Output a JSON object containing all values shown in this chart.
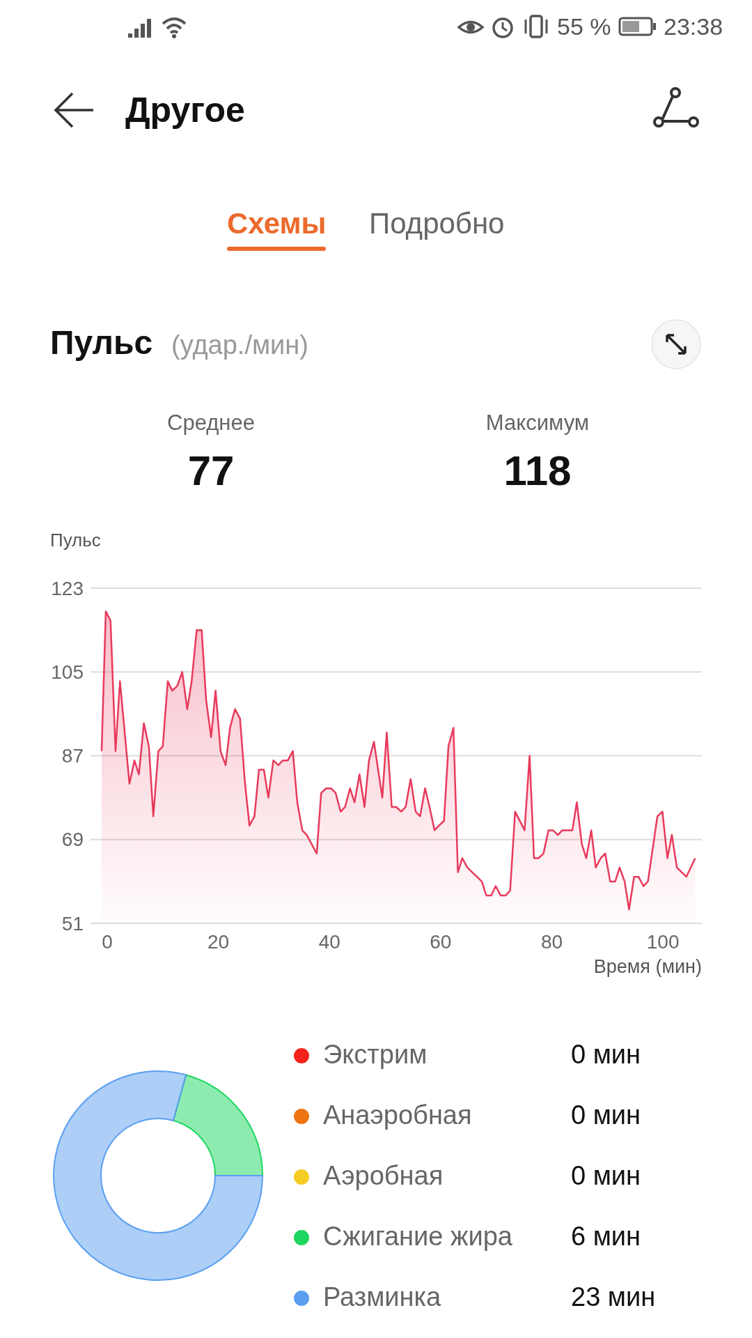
{
  "chart_data": [
    {
      "type": "area",
      "title": "Пульс",
      "subtitle": "(удар./мин)",
      "ylabel": "Пульс",
      "xlabel": "Время (мин)",
      "annotations": [
        "Другое",
        "Схемы",
        "Подробно",
        "Среднее",
        "77",
        "Максимум",
        "118",
        "55 %",
        "23:38"
      ],
      "x": [
        -1.0,
        -0.25,
        0.6,
        1.5,
        2.3,
        4.0,
        4.9,
        5.7,
        6.6,
        7.5,
        8.3,
        9.2,
        10.0,
        10.9,
        11.7,
        12.6,
        13.5,
        14.4,
        15.2,
        16.1,
        17.0,
        17.8,
        18.7,
        19.5,
        20.4,
        21.3,
        22.1,
        23.0,
        23.9,
        24.8,
        25.6,
        26.5,
        27.3,
        28.2,
        29.0,
        29.9,
        30.8,
        31.6,
        32.5,
        33.4,
        34.2,
        35.1,
        35.9,
        37.7,
        38.5,
        39.4,
        40.3,
        41.1,
        42.0,
        42.8,
        43.7,
        44.5,
        45.4,
        46.3,
        47.1,
        48.0,
        49.5,
        50.3,
        51.2,
        52.0,
        52.9,
        53.7,
        54.6,
        55.5,
        56.3,
        57.2,
        58.0,
        58.9,
        59.7,
        60.6,
        61.4,
        62.3,
        63.1,
        63.9,
        64.8,
        67.4,
        68.2,
        69.1,
        69.9,
        70.8,
        71.7,
        72.5,
        73.4,
        75.1,
        76.0,
        76.8,
        77.6,
        78.5,
        79.4,
        80.2,
        81.1,
        81.9,
        83.7,
        84.5,
        85.4,
        86.2,
        87.1,
        87.9,
        88.8,
        89.6,
        90.5,
        91.4,
        92.2,
        93.1,
        93.9,
        94.8,
        95.6,
        96.5,
        97.3,
        99.0,
        99.9,
        100.8,
        101.6,
        102.5,
        104.2,
        105.8
      ],
      "series": [
        {
          "color": "#e83a5c",
          "values": [
            88,
            118,
            116,
            88,
            103,
            81,
            86,
            83,
            94,
            89,
            74,
            88,
            89,
            103,
            101,
            102,
            105,
            97,
            103,
            114,
            114,
            99,
            91,
            101,
            88,
            85,
            93,
            97,
            95,
            81,
            72,
            74,
            84,
            84,
            78,
            86,
            85,
            86,
            86,
            88,
            77,
            71,
            70,
            66,
            79,
            80,
            80,
            79,
            75,
            76,
            80,
            77,
            83,
            76,
            86,
            90,
            78,
            92,
            76,
            76,
            75,
            76,
            82,
            75,
            74,
            80,
            76,
            71,
            72,
            73,
            89,
            93,
            62,
            65,
            63,
            60,
            57,
            57,
            59,
            57,
            57,
            58,
            75,
            71,
            87,
            65,
            65,
            66,
            71,
            71,
            70,
            71,
            71,
            77,
            68,
            65,
            71,
            63,
            65,
            66,
            60,
            60,
            63,
            60,
            54,
            61,
            61,
            59,
            60,
            74,
            75,
            65,
            70,
            63,
            61,
            65
          ]
        }
      ],
      "xlim": [
        -3,
        107
      ],
      "xticks": [
        0,
        20,
        40,
        60,
        80,
        100
      ],
      "ylim": [
        51,
        123
      ],
      "yticks": [
        51,
        69,
        87,
        105,
        123
      ],
      "grid": "y"
    },
    {
      "type": "donut",
      "categories": [
        "Экстрим",
        "Анаэробная",
        "Аэробная",
        "Сжигание жира",
        "Разминка"
      ],
      "values": [
        0,
        0,
        0,
        6,
        23
      ],
      "value_labels": [
        "0 мин",
        "0 мин",
        "0 мин",
        "6 мин",
        "23 мин"
      ],
      "colors": [
        "#f5231b",
        "#ee7311",
        "#f5cc22",
        "#1ed760",
        "#5a9ef0"
      ],
      "legend": "right"
    }
  ]
}
